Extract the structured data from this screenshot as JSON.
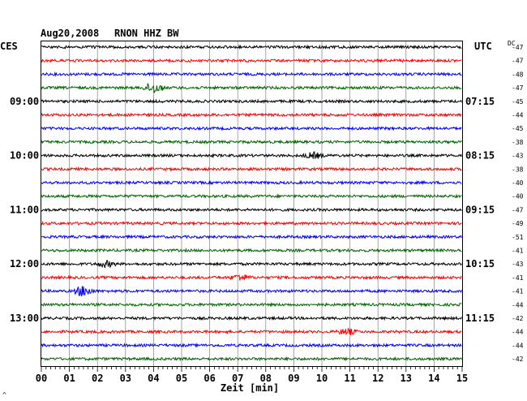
{
  "header": {
    "date": "Aug20,2008",
    "station": "RNON HHZ BW",
    "left_zone": "CES",
    "right_zone": "UTC",
    "dc_label": "DC"
  },
  "xaxis": {
    "label": "Zeit [min]",
    "ticks": [
      "00",
      "01",
      "02",
      "03",
      "04",
      "05",
      "06",
      "07",
      "08",
      "09",
      "10",
      "11",
      "12",
      "13",
      "14",
      "15"
    ]
  },
  "footer_mark": "^",
  "colors": {
    "black": "#000000",
    "red": "#ff0000",
    "blue": "#0000ff",
    "green": "#006400",
    "grid": "#808080"
  },
  "chart_data": {
    "type": "line",
    "title": "Aug20,2008   RNON HHZ BW",
    "xlabel": "Zeit [min]",
    "xlim": [
      0,
      15
    ],
    "trace_count": 24,
    "trace_minutes": 15,
    "color_cycle": [
      "black",
      "red",
      "blue",
      "green"
    ],
    "left_hour_labels": [
      "09:00",
      "10:00",
      "11:00",
      "12:00",
      "13:00"
    ],
    "right_hour_labels": [
      "07:15",
      "08:15",
      "09:15",
      "10:15",
      "11:15"
    ],
    "hour_label_trace_index": [
      4,
      8,
      12,
      16,
      20
    ],
    "dc_offsets": [
      -47,
      -47,
      -48,
      -47,
      -45,
      -44,
      -45,
      -38,
      -43,
      -38,
      -40,
      -40,
      -47,
      -49,
      -51,
      -41,
      -43,
      -41,
      -41,
      -44,
      -42,
      -44,
      -44,
      -42
    ],
    "events": [
      {
        "trace": 3,
        "minute": 4.0,
        "amplitude": "medium"
      },
      {
        "trace": 8,
        "minute": 9.7,
        "amplitude": "small"
      },
      {
        "trace": 16,
        "minute": 2.3,
        "amplitude": "small"
      },
      {
        "trace": 17,
        "minute": 7.1,
        "amplitude": "small"
      },
      {
        "trace": 18,
        "minute": 1.5,
        "amplitude": "medium"
      },
      {
        "trace": 21,
        "minute": 10.9,
        "amplitude": "small"
      }
    ]
  }
}
